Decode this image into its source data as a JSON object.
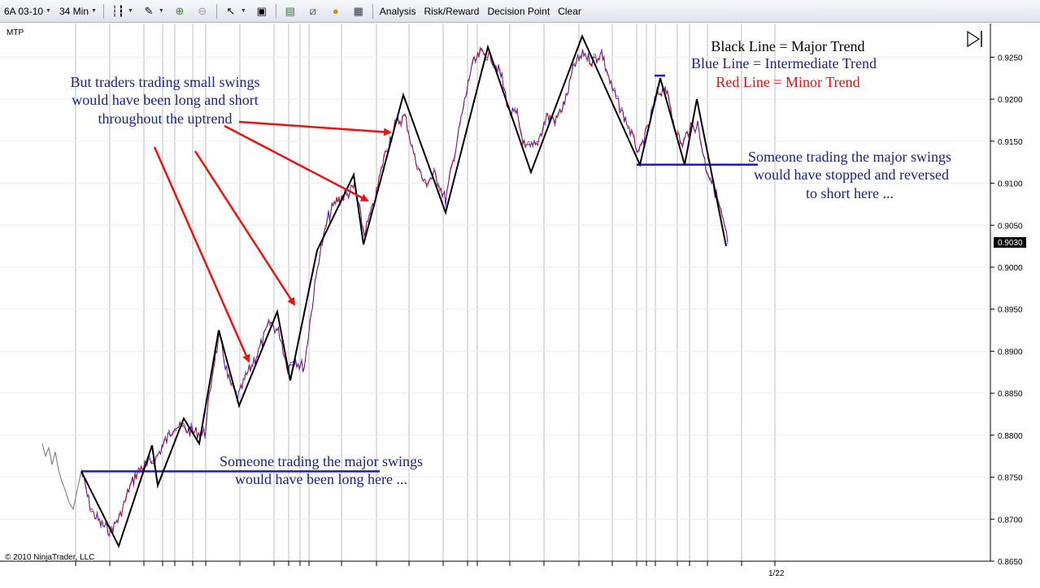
{
  "toolbar": {
    "instrument": "6A 03-10",
    "period": "34 Min",
    "items": [
      "Analysis",
      "Risk/Reward",
      "Decision Point",
      "Clear"
    ],
    "icons": [
      "bar-type-icon",
      "drawing-tool-icon",
      "zoom-in-icon",
      "zoom-out-icon",
      "cursor-icon",
      "data-box-icon",
      "strategy-icon",
      "indicator-icon",
      "money-icon",
      "properties-icon"
    ]
  },
  "chart": {
    "panel_label": "MTP",
    "copyright": "© 2010 NinjaTrader, LLC",
    "last_price": "0.9030",
    "x_tick_label": "1/22",
    "collapse_icon": "panel-collapse-icon"
  },
  "annotations": {
    "legend_black": "Black Line = Major Trend",
    "legend_blue": "Blue Line = Intermediate Trend",
    "legend_red": "Red Line = Minor Trend",
    "small_swings": [
      "But traders trading small swings",
      "would have been long and short",
      "throughout the uptrend"
    ],
    "major_long": [
      "Someone trading the major swings",
      "would have been long here ..."
    ],
    "major_short": [
      "Someone trading the major swings",
      "would have stopped and reversed",
      "to short here ..."
    ]
  },
  "colors": {
    "major": "#000000",
    "intermediate": "#1a1acc",
    "minor": "#e01010",
    "history": "#888888",
    "annotation_text": "#1a237e",
    "arrow": "#ee1111"
  },
  "chart_data": {
    "type": "line",
    "y_ticks": [
      "0.9250",
      "0.9200",
      "0.9150",
      "0.9100",
      "0.9050",
      "0.9000",
      "0.8950",
      "0.8900",
      "0.8850",
      "0.8800",
      "0.8750",
      "0.8700",
      "0.8650"
    ],
    "ylim": [
      0.865,
      0.929
    ],
    "x_ticks": [
      "1/22"
    ],
    "series": [
      {
        "name": "Black Line = Major Trend",
        "values": [
          [
            100,
            0.8757
          ],
          [
            146,
            0.8668
          ],
          [
            187,
            0.8788
          ],
          [
            194,
            0.874
          ],
          [
            226,
            0.882
          ],
          [
            245,
            0.879
          ],
          [
            269,
            0.8925
          ],
          [
            294,
            0.8835
          ],
          [
            341,
            0.8947
          ],
          [
            357,
            0.8865
          ],
          [
            390,
            0.902
          ],
          [
            435,
            0.911
          ],
          [
            447,
            0.9027
          ],
          [
            496,
            0.9205
          ],
          [
            548,
            0.9065
          ],
          [
            600,
            0.9262
          ],
          [
            653,
            0.9113
          ],
          [
            716,
            0.9275
          ],
          [
            787,
            0.9122
          ],
          [
            812,
            0.9225
          ],
          [
            842,
            0.9122
          ],
          [
            857,
            0.92
          ],
          [
            893,
            0.9025
          ]
        ]
      },
      {
        "name": "Blue Line = Intermediate Trend",
        "levels": [
          {
            "y": 0.8757,
            "x_from": 100,
            "x_to": 467
          },
          {
            "y": 0.9122,
            "x_from": 783,
            "x_to": 932
          },
          {
            "y": 0.9228,
            "x_from": 805,
            "x_to": 818
          }
        ]
      },
      {
        "name": "Red Line = Minor Trend",
        "values": [
          [
            100,
            0.8757
          ],
          [
            112,
            0.871
          ],
          [
            124,
            0.8695
          ],
          [
            136,
            0.8685
          ],
          [
            148,
            0.8705
          ],
          [
            160,
            0.874
          ],
          [
            172,
            0.876
          ],
          [
            190,
            0.877
          ],
          [
            205,
            0.8795
          ],
          [
            215,
            0.8812
          ],
          [
            232,
            0.8805
          ],
          [
            252,
            0.8802
          ],
          [
            262,
            0.888
          ],
          [
            270,
            0.8918
          ],
          [
            280,
            0.887
          ],
          [
            292,
            0.8843
          ],
          [
            305,
            0.8875
          ],
          [
            318,
            0.89
          ],
          [
            332,
            0.8935
          ],
          [
            344,
            0.892
          ],
          [
            354,
            0.888
          ],
          [
            362,
            0.889
          ],
          [
            374,
            0.888
          ],
          [
            384,
            0.8955
          ],
          [
            392,
            0.901
          ],
          [
            404,
            0.906
          ],
          [
            414,
            0.908
          ],
          [
            424,
            0.9085
          ],
          [
            436,
            0.9095
          ],
          [
            448,
            0.904
          ],
          [
            460,
            0.9075
          ],
          [
            472,
            0.913
          ],
          [
            486,
            0.917
          ],
          [
            498,
            0.918
          ],
          [
            510,
            0.913
          ],
          [
            522,
            0.91
          ],
          [
            535,
            0.911
          ],
          [
            548,
            0.908
          ],
          [
            560,
            0.914
          ],
          [
            570,
            0.919
          ],
          [
            580,
            0.924
          ],
          [
            592,
            0.9255
          ],
          [
            604,
            0.925
          ],
          [
            616,
            0.923
          ],
          [
            626,
            0.9185
          ],
          [
            636,
            0.918
          ],
          [
            646,
            0.914
          ],
          [
            660,
            0.9145
          ],
          [
            672,
            0.918
          ],
          [
            684,
            0.9175
          ],
          [
            696,
            0.92
          ],
          [
            706,
            0.924
          ],
          [
            718,
            0.9255
          ],
          [
            728,
            0.9245
          ],
          [
            740,
            0.9255
          ],
          [
            750,
            0.922
          ],
          [
            762,
            0.919
          ],
          [
            772,
            0.917
          ],
          [
            786,
            0.9135
          ],
          [
            798,
            0.917
          ],
          [
            808,
            0.9205
          ],
          [
            818,
            0.9215
          ],
          [
            828,
            0.9175
          ],
          [
            838,
            0.9145
          ],
          [
            848,
            0.9165
          ],
          [
            858,
            0.917
          ],
          [
            868,
            0.912
          ],
          [
            878,
            0.9095
          ],
          [
            888,
            0.906
          ],
          [
            895,
            0.903
          ]
        ]
      }
    ],
    "history": [
      [
        52,
        0.879
      ],
      [
        56,
        0.8775
      ],
      [
        60,
        0.8785
      ],
      [
        64,
        0.8765
      ],
      [
        68,
        0.878
      ],
      [
        72,
        0.8758
      ],
      [
        76,
        0.8745
      ],
      [
        80,
        0.8735
      ],
      [
        85,
        0.872
      ],
      [
        90,
        0.8712
      ],
      [
        95,
        0.8735
      ],
      [
        100,
        0.8757
      ]
    ]
  }
}
